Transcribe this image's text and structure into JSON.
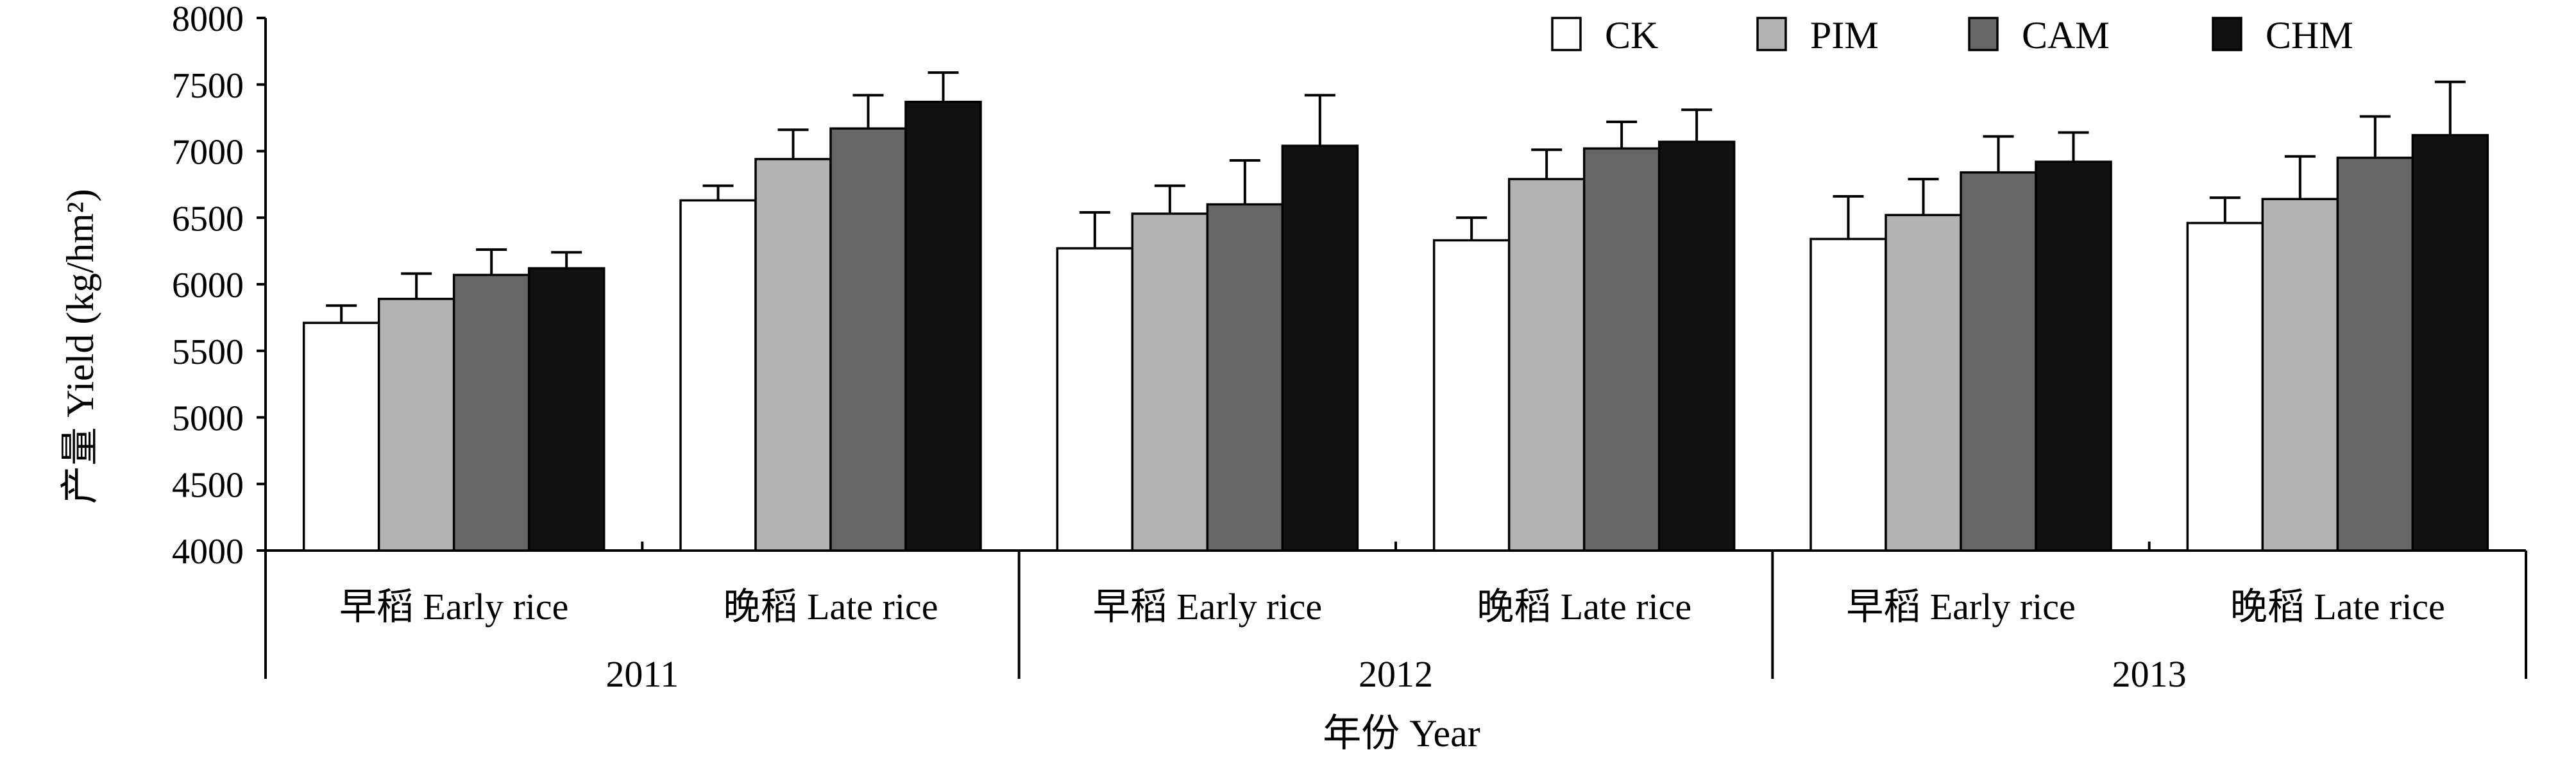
{
  "chart_data": {
    "type": "bar",
    "ylabel": "产量 Yield (kg/hm²)",
    "xlabel": "年份 Year",
    "ylim": [
      4000,
      8000
    ],
    "yticks": [
      4000,
      4500,
      5000,
      5500,
      6000,
      6500,
      7000,
      7500,
      8000
    ],
    "legend_position": "top-right",
    "series": [
      {
        "name": "CK",
        "color": "#ffffff",
        "values": [
          5710,
          6630,
          6270,
          6330,
          6340,
          6460
        ],
        "errors": [
          130,
          110,
          270,
          170,
          320,
          190
        ]
      },
      {
        "name": "PIM",
        "color": "#b3b3b3",
        "values": [
          5890,
          6940,
          6530,
          6790,
          6520,
          6640
        ],
        "errors": [
          190,
          220,
          210,
          220,
          270,
          320
        ]
      },
      {
        "name": "CAM",
        "color": "#666666",
        "values": [
          6070,
          7170,
          6600,
          7020,
          6840,
          6950
        ],
        "errors": [
          190,
          250,
          330,
          200,
          270,
          310
        ]
      },
      {
        "name": "CHM",
        "color": "#111111",
        "values": [
          6120,
          7370,
          7040,
          7070,
          6920,
          7120
        ],
        "errors": [
          120,
          220,
          380,
          240,
          220,
          400
        ]
      }
    ],
    "categories": [
      "早稻 Early rice",
      "晚稻 Late rice",
      "早稻 Early rice",
      "晚稻 Late rice",
      "早稻 Early rice",
      "晚稻 Late rice"
    ],
    "groups": [
      {
        "label": "2011",
        "categories": [
          0,
          1
        ]
      },
      {
        "label": "2012",
        "categories": [
          2,
          3
        ]
      },
      {
        "label": "2013",
        "categories": [
          4,
          5
        ]
      }
    ]
  }
}
